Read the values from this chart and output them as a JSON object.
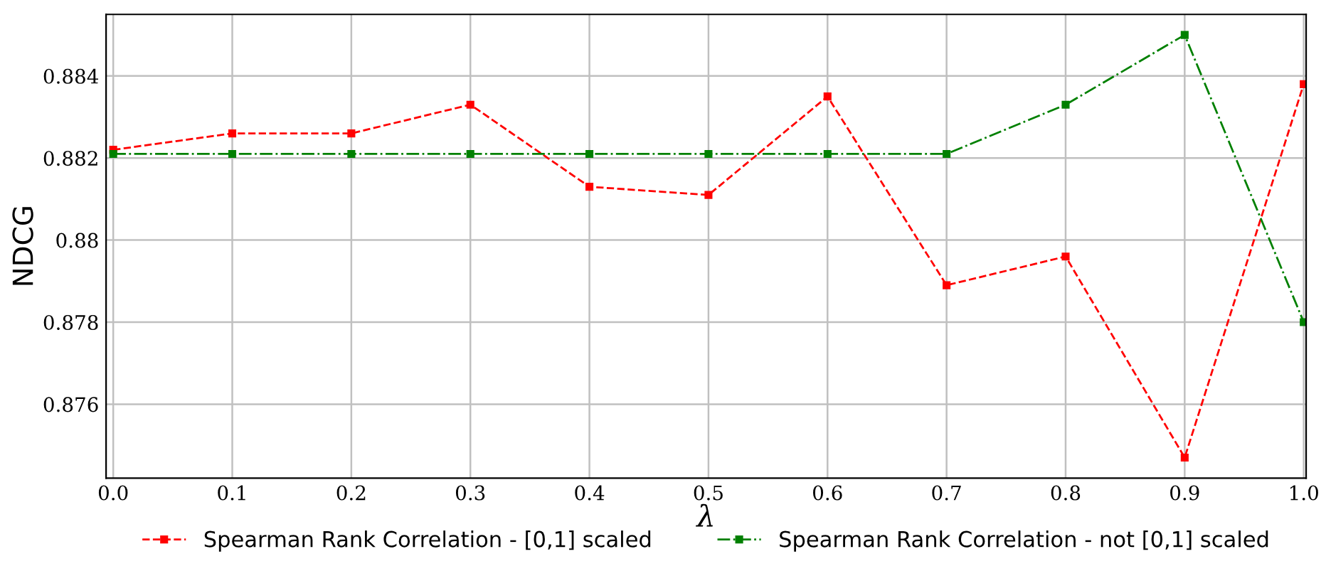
{
  "chart_data": {
    "type": "line",
    "xlabel": "λ",
    "ylabel": "NDCG",
    "x": [
      0.0,
      0.1,
      0.2,
      0.3,
      0.4,
      0.5,
      0.6,
      0.7,
      0.8,
      0.9,
      1.0
    ],
    "series": [
      {
        "name": "Spearman Rank Correlation - [0,1] scaled",
        "color": "#ff0000",
        "line_style": "dashed",
        "values": [
          0.8822,
          0.8826,
          0.8826,
          0.8833,
          0.8813,
          0.8811,
          0.8835,
          0.8789,
          0.8796,
          0.8747,
          0.8838
        ]
      },
      {
        "name": "Spearman Rank Correlation - not [0,1] scaled",
        "color": "#008000",
        "line_style": "dashdot",
        "values": [
          0.8821,
          0.8821,
          0.8821,
          0.8821,
          0.8821,
          0.8821,
          0.8821,
          0.8821,
          0.8833,
          0.885,
          0.878
        ]
      }
    ],
    "xlim": [
      -0.006,
      1.002
    ],
    "ylim": [
      0.8742,
      0.8855
    ],
    "xticks": [
      {
        "value": 0.0,
        "label": "0.0"
      },
      0.1,
      0.2,
      0.3,
      0.4,
      0.5,
      0.6,
      0.7,
      0.8,
      0.9,
      {
        "value": 1.0,
        "label": "1.0"
      }
    ],
    "yticks": [
      0.876,
      0.878,
      0.88,
      0.882,
      0.884
    ],
    "grid": true,
    "legend": "bottom",
    "marker": "square"
  }
}
